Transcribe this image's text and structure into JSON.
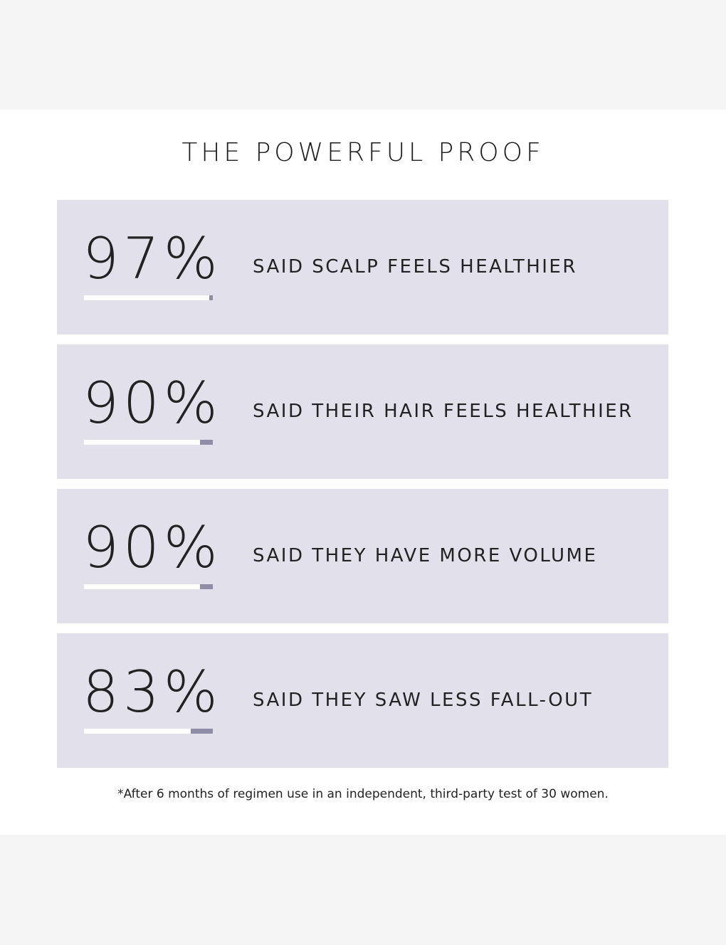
{
  "title": "THE POWERFUL PROOF",
  "stats": [
    {
      "value": "97%",
      "label": "SAID SCALP FEELS HEALTHIER",
      "percent": 97
    },
    {
      "value": "90%",
      "label": "SAID THEIR HAIR FEELS HEALTHIER",
      "percent": 90
    },
    {
      "value": "90%",
      "label": "SAID THEY HAVE MORE VOLUME",
      "percent": 90
    },
    {
      "value": "83%",
      "label": "SAID THEY SAW LESS FALL-OUT",
      "percent": 83
    }
  ],
  "footnote": "*After 6 months of regimen use in an independent, third-party test of 30 women.",
  "colors": {
    "page_background": "#f5f5f5",
    "panel_background": "#ffffff",
    "card_background": "#e1e0eb",
    "bar_track": "#8f8ca8",
    "bar_fill": "#ffffff",
    "text": "#222222"
  }
}
